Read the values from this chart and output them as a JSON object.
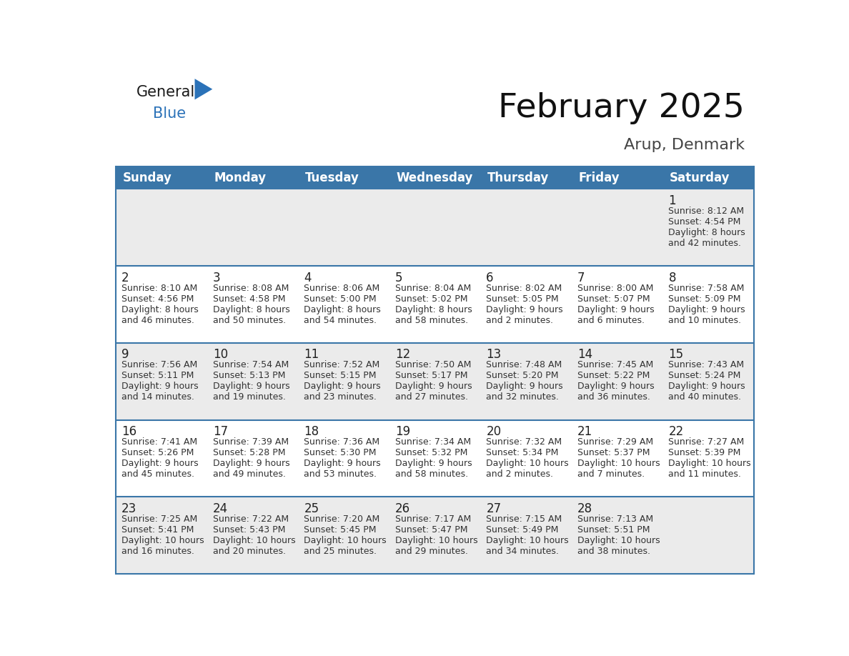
{
  "title": "February 2025",
  "subtitle": "Arup, Denmark",
  "header_color": "#3a76a8",
  "header_text_color": "#ffffff",
  "row_bg_odd": "#ebebeb",
  "row_bg_even": "#ffffff",
  "border_color": "#3a76a8",
  "text_color_dark": "#333333",
  "day_num_color": "#1a1a1a",
  "logo_black": "#1a1a1a",
  "logo_blue": "#2b72b8",
  "triangle_color": "#2b72b8",
  "day_headers": [
    "Sunday",
    "Monday",
    "Tuesday",
    "Wednesday",
    "Thursday",
    "Friday",
    "Saturday"
  ],
  "title_fontsize": 34,
  "subtitle_fontsize": 16,
  "header_fontsize": 12,
  "day_num_fontsize": 11,
  "info_fontsize": 9,
  "calendar": [
    [
      null,
      null,
      null,
      null,
      null,
      null,
      {
        "day": 1,
        "sunrise": "8:12 AM",
        "sunset": "4:54 PM",
        "daylight": "8 hours",
        "daylight2": "and 42 minutes."
      }
    ],
    [
      {
        "day": 2,
        "sunrise": "8:10 AM",
        "sunset": "4:56 PM",
        "daylight": "8 hours",
        "daylight2": "and 46 minutes."
      },
      {
        "day": 3,
        "sunrise": "8:08 AM",
        "sunset": "4:58 PM",
        "daylight": "8 hours",
        "daylight2": "and 50 minutes."
      },
      {
        "day": 4,
        "sunrise": "8:06 AM",
        "sunset": "5:00 PM",
        "daylight": "8 hours",
        "daylight2": "and 54 minutes."
      },
      {
        "day": 5,
        "sunrise": "8:04 AM",
        "sunset": "5:02 PM",
        "daylight": "8 hours",
        "daylight2": "and 58 minutes."
      },
      {
        "day": 6,
        "sunrise": "8:02 AM",
        "sunset": "5:05 PM",
        "daylight": "9 hours",
        "daylight2": "and 2 minutes."
      },
      {
        "day": 7,
        "sunrise": "8:00 AM",
        "sunset": "5:07 PM",
        "daylight": "9 hours",
        "daylight2": "and 6 minutes."
      },
      {
        "day": 8,
        "sunrise": "7:58 AM",
        "sunset": "5:09 PM",
        "daylight": "9 hours",
        "daylight2": "and 10 minutes."
      }
    ],
    [
      {
        "day": 9,
        "sunrise": "7:56 AM",
        "sunset": "5:11 PM",
        "daylight": "9 hours",
        "daylight2": "and 14 minutes."
      },
      {
        "day": 10,
        "sunrise": "7:54 AM",
        "sunset": "5:13 PM",
        "daylight": "9 hours",
        "daylight2": "and 19 minutes."
      },
      {
        "day": 11,
        "sunrise": "7:52 AM",
        "sunset": "5:15 PM",
        "daylight": "9 hours",
        "daylight2": "and 23 minutes."
      },
      {
        "day": 12,
        "sunrise": "7:50 AM",
        "sunset": "5:17 PM",
        "daylight": "9 hours",
        "daylight2": "and 27 minutes."
      },
      {
        "day": 13,
        "sunrise": "7:48 AM",
        "sunset": "5:20 PM",
        "daylight": "9 hours",
        "daylight2": "and 32 minutes."
      },
      {
        "day": 14,
        "sunrise": "7:45 AM",
        "sunset": "5:22 PM",
        "daylight": "9 hours",
        "daylight2": "and 36 minutes."
      },
      {
        "day": 15,
        "sunrise": "7:43 AM",
        "sunset": "5:24 PM",
        "daylight": "9 hours",
        "daylight2": "and 40 minutes."
      }
    ],
    [
      {
        "day": 16,
        "sunrise": "7:41 AM",
        "sunset": "5:26 PM",
        "daylight": "9 hours",
        "daylight2": "and 45 minutes."
      },
      {
        "day": 17,
        "sunrise": "7:39 AM",
        "sunset": "5:28 PM",
        "daylight": "9 hours",
        "daylight2": "and 49 minutes."
      },
      {
        "day": 18,
        "sunrise": "7:36 AM",
        "sunset": "5:30 PM",
        "daylight": "9 hours",
        "daylight2": "and 53 minutes."
      },
      {
        "day": 19,
        "sunrise": "7:34 AM",
        "sunset": "5:32 PM",
        "daylight": "9 hours",
        "daylight2": "and 58 minutes."
      },
      {
        "day": 20,
        "sunrise": "7:32 AM",
        "sunset": "5:34 PM",
        "daylight": "10 hours",
        "daylight2": "and 2 minutes."
      },
      {
        "day": 21,
        "sunrise": "7:29 AM",
        "sunset": "5:37 PM",
        "daylight": "10 hours",
        "daylight2": "and 7 minutes."
      },
      {
        "day": 22,
        "sunrise": "7:27 AM",
        "sunset": "5:39 PM",
        "daylight": "10 hours",
        "daylight2": "and 11 minutes."
      }
    ],
    [
      {
        "day": 23,
        "sunrise": "7:25 AM",
        "sunset": "5:41 PM",
        "daylight": "10 hours",
        "daylight2": "and 16 minutes."
      },
      {
        "day": 24,
        "sunrise": "7:22 AM",
        "sunset": "5:43 PM",
        "daylight": "10 hours",
        "daylight2": "and 20 minutes."
      },
      {
        "day": 25,
        "sunrise": "7:20 AM",
        "sunset": "5:45 PM",
        "daylight": "10 hours",
        "daylight2": "and 25 minutes."
      },
      {
        "day": 26,
        "sunrise": "7:17 AM",
        "sunset": "5:47 PM",
        "daylight": "10 hours",
        "daylight2": "and 29 minutes."
      },
      {
        "day": 27,
        "sunrise": "7:15 AM",
        "sunset": "5:49 PM",
        "daylight": "10 hours",
        "daylight2": "and 34 minutes."
      },
      {
        "day": 28,
        "sunrise": "7:13 AM",
        "sunset": "5:51 PM",
        "daylight": "10 hours",
        "daylight2": "and 38 minutes."
      },
      null
    ]
  ]
}
